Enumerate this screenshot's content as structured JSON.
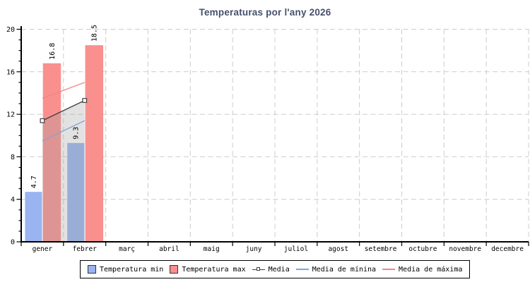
{
  "chart_data": {
    "type": "bar",
    "title": "Temperaturas por l'any 2026",
    "title_color": "#47506b",
    "categories": [
      "gener",
      "febrer",
      "març",
      "abril",
      "maig",
      "juny",
      "juliol",
      "agost",
      "setembre",
      "octubre",
      "novembre",
      "decembre"
    ],
    "bar_series": [
      {
        "name": "Temperatura min",
        "color": "#99b4f0",
        "outline": "#333333",
        "values": [
          4.7,
          9.3,
          null,
          null,
          null,
          null,
          null,
          null,
          null,
          null,
          null,
          null
        ]
      },
      {
        "name": "Temperatura max",
        "color": "#f9908e",
        "outline": "#333333",
        "values": [
          16.8,
          18.5,
          null,
          null,
          null,
          null,
          null,
          null,
          null,
          null,
          null,
          null
        ]
      }
    ],
    "line_series": [
      {
        "name": "Media",
        "color": "#404040",
        "marker": "open-square",
        "area_fill": "rgba(160,160,160,0.3)",
        "values": [
          11.4,
          13.3,
          null,
          null,
          null,
          null,
          null,
          null,
          null,
          null,
          null,
          null
        ]
      },
      {
        "name": "Media de mínina",
        "color": "#7fa3e8",
        "marker": "none",
        "area_fill": null,
        "values": [
          9.5,
          11.4,
          null,
          null,
          null,
          null,
          null,
          null,
          null,
          null,
          null,
          null
        ]
      },
      {
        "name": "Media de máxima",
        "color": "#f28583",
        "marker": "none",
        "area_fill": null,
        "values": [
          13.5,
          15.0,
          null,
          null,
          null,
          null,
          null,
          null,
          null,
          null,
          null,
          null
        ]
      }
    ],
    "ylim": [
      0,
      20
    ],
    "yticks": [
      0,
      4,
      8,
      12,
      16,
      20
    ],
    "y_minor_step": 1,
    "grid": true,
    "grid_color": "#cccccc",
    "axis_color": "#000000",
    "label_color": "#000000",
    "legend_position": "bottom"
  }
}
